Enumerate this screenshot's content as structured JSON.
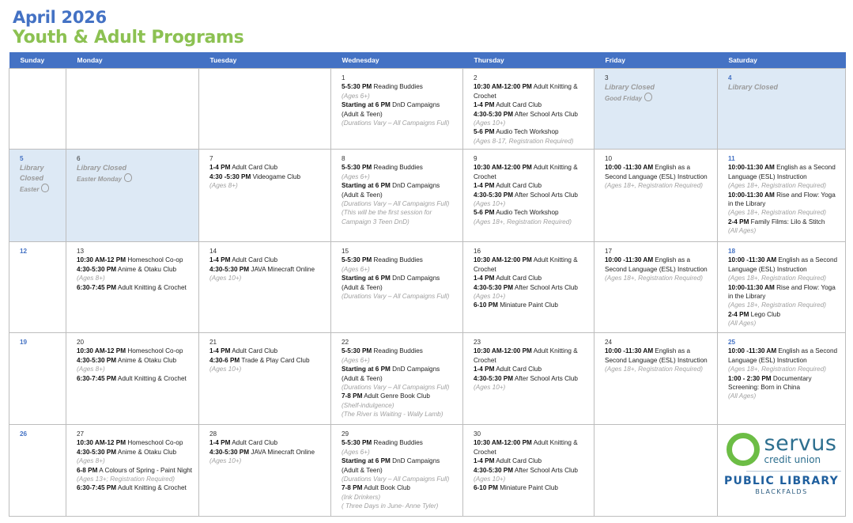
{
  "header": {
    "month": "April 2026",
    "title": "Youth & Adult Programs"
  },
  "colors": {
    "header_bg": "#4472c4",
    "title_blue": "#4472c4",
    "title_green": "#8cc152",
    "closed_bg": "#dde9f5"
  },
  "weekdays": [
    "Sunday",
    "Monday",
    "Tuesday",
    "Wednesday",
    "Thursday",
    "Friday",
    "Saturday"
  ],
  "weeks": [
    [
      {},
      {},
      {},
      {
        "date": "1",
        "events": [
          {
            "time": "5-5:30 PM",
            "title": "Reading Buddies",
            "notes": [
              "(Ages 6+)"
            ]
          },
          {
            "time": "Starting at 6 PM",
            "title": "DnD Campaigns (Adult & Teen)",
            "notes": [
              "(Durations Vary – All Campaigns Full)"
            ]
          }
        ]
      },
      {
        "date": "2",
        "events": [
          {
            "time": "10:30 AM-12:00 PM",
            "title": "Adult Knitting & Crochet",
            "notes": []
          },
          {
            "time": "1-4 PM",
            "title": "Adult Card Club",
            "notes": []
          },
          {
            "time": "4:30-5:30 PM",
            "title": "After School Arts Club",
            "notes": [
              "(Ages 10+)"
            ]
          },
          {
            "time": "5-6 PM",
            "title": "Audio Tech Workshop",
            "notes": [
              "(Ages 8-17, Registration Required)"
            ]
          }
        ]
      },
      {
        "date": "3",
        "closed": "Library Closed",
        "holiday": "Good Friday",
        "icon": "easter-egg-icon"
      },
      {
        "date": "4",
        "closed": "Library Closed"
      }
    ],
    [
      {
        "date": "5",
        "closed": "Library Closed",
        "holiday": "Easter",
        "icon": "easter-egg-icon"
      },
      {
        "date": "6",
        "closed": "Library Closed",
        "holiday": "Easter Monday",
        "icon": "easter-bunny-icon"
      },
      {
        "date": "7",
        "events": [
          {
            "time": "1-4 PM",
            "title": "Adult Card Club",
            "notes": []
          },
          {
            "time": "4:30 -5:30 PM",
            "title": "Videogame Club",
            "notes": [
              "(Ages 8+)"
            ]
          }
        ]
      },
      {
        "date": "8",
        "events": [
          {
            "time": "5-5:30 PM",
            "title": "Reading Buddies",
            "notes": [
              "(Ages 6+)"
            ]
          },
          {
            "time": "Starting at 6 PM",
            "title": "DnD Campaigns (Adult & Teen)",
            "notes": [
              "(Durations Vary – All Campaigns Full)",
              "(This will be the first session for Campaign 3 Teen DnD)"
            ]
          }
        ]
      },
      {
        "date": "9",
        "events": [
          {
            "time": "10:30 AM-12:00 PM",
            "title": "Adult Knitting & Crochet",
            "notes": []
          },
          {
            "time": "1-4 PM",
            "title": "Adult Card Club",
            "notes": []
          },
          {
            "time": "4:30-5:30 PM",
            "title": "After School Arts Club",
            "notes": [
              "(Ages 10+)"
            ]
          },
          {
            "time": "5-6 PM",
            "title": "Audio Tech Workshop",
            "notes": [
              "(Ages 18+, Registration Required)"
            ]
          }
        ]
      },
      {
        "date": "10",
        "events": [
          {
            "time": "10:00 -11:30 AM",
            "title": "English as a Second Language (ESL) Instruction",
            "notes": [
              "(Ages 18+, Registration Required)"
            ]
          }
        ]
      },
      {
        "date": "11",
        "events": [
          {
            "time": "10:00-11:30 AM",
            "title": "English as a Second Language (ESL) Instruction",
            "notes": [
              "(Ages 18+, Registration Required)"
            ]
          },
          {
            "time": "10:00-11:30 AM",
            "title": " Rise and Flow: Yoga in the Library",
            "notes": [
              "(Ages 18+, Registration Required)"
            ]
          },
          {
            "time": "2-4 PM",
            "title": "Family Films: Lilo & Stitch",
            "notes": [
              "(All Ages)"
            ]
          }
        ]
      }
    ],
    [
      {
        "date": "12",
        "events": []
      },
      {
        "date": "13",
        "events": [
          {
            "time": "10:30 AM-12 PM",
            "title": "Homeschool Co-op",
            "notes": []
          },
          {
            "time": "4:30-5:30 PM",
            "title": "Anime & Otaku Club",
            "notes": [
              "(Ages 8+)"
            ]
          },
          {
            "time": "6:30-7:45 PM",
            "title": "Adult Knitting & Crochet",
            "notes": []
          }
        ]
      },
      {
        "date": "14",
        "events": [
          {
            "time": "1-4 PM",
            "title": "Adult Card Club",
            "notes": []
          },
          {
            "time": "4:30-5:30 PM",
            "title": "JAVA Minecraft Online",
            "notes": [
              "(Ages 10+)"
            ]
          }
        ]
      },
      {
        "date": "15",
        "events": [
          {
            "time": "5-5:30 PM",
            "title": "Reading Buddies",
            "notes": [
              "(Ages 6+)"
            ]
          },
          {
            "time": "Starting at 6 PM",
            "title": "DnD Campaigns (Adult & Teen)",
            "notes": [
              "(Durations Vary – All Campaigns Full)"
            ]
          }
        ]
      },
      {
        "date": "16",
        "events": [
          {
            "time": "10:30 AM-12:00 PM",
            "title": "Adult Knitting & Crochet",
            "notes": []
          },
          {
            "time": "1-4 PM",
            "title": "Adult Card Club",
            "notes": []
          },
          {
            "time": "4:30-5:30 PM",
            "title": "After School Arts Club",
            "notes": [
              "(Ages 10+)"
            ]
          },
          {
            "time": "6-10 PM",
            "title": "Miniature Paint Club",
            "notes": []
          }
        ]
      },
      {
        "date": "17",
        "events": [
          {
            "time": "10:00 -11:30 AM",
            "title": "English as a Second Language (ESL) Instruction",
            "notes": [
              "(Ages 18+, Registration Required)"
            ]
          }
        ]
      },
      {
        "date": "18",
        "events": [
          {
            "time": "10:00 -11:30 AM",
            "title": "English as a Second Language (ESL) Instruction",
            "notes": [
              "(Ages 18+, Registration Required)"
            ]
          },
          {
            "time": "10:00-11:30 AM",
            "title": "Rise and Flow: Yoga in the Library",
            "notes": [
              "(Ages 18+, Registration Required)"
            ]
          },
          {
            "time": "2-4 PM",
            "title": "Lego Club",
            "notes": [
              "(All Ages)"
            ]
          }
        ]
      }
    ],
    [
      {
        "date": "19",
        "events": []
      },
      {
        "date": "20",
        "events": [
          {
            "time": "10:30 AM-12 PM",
            "title": "Homeschool Co-op",
            "notes": []
          },
          {
            "time": "4:30-5:30 PM",
            "title": "Anime & Otaku Club",
            "notes": [
              "(Ages 8+)"
            ]
          },
          {
            "time": "6:30-7:45 PM",
            "title": "Adult Knitting & Crochet",
            "notes": []
          }
        ]
      },
      {
        "date": "21",
        "events": [
          {
            "time": "1-4 PM",
            "title": "Adult Card Club",
            "notes": []
          },
          {
            "time": "4:30-6 PM",
            "title": "Trade & Play Card Club",
            "notes": [
              "(Ages 10+)"
            ]
          }
        ]
      },
      {
        "date": "22",
        "events": [
          {
            "time": "5-5:30 PM",
            "title": "Reading Buddies",
            "notes": [
              "(Ages 6+)"
            ]
          },
          {
            "time": "Starting at 6 PM",
            "title": "DnD Campaigns (Adult & Teen)",
            "notes": [
              "(Durations Vary – All Campaigns Full)"
            ]
          },
          {
            "time": "7-8 PM",
            "title": "Adult Genre Book Club",
            "notes": [
              "(Shelf-indulgence)",
              "(The River is Waiting - Wally Lamb)"
            ]
          }
        ]
      },
      {
        "date": "23",
        "events": [
          {
            "time": "10:30 AM-12:00 PM",
            "title": "Adult Knitting & Crochet",
            "notes": []
          },
          {
            "time": "1-4 PM",
            "title": "Adult Card Club",
            "notes": []
          },
          {
            "time": "4:30-5:30 PM",
            "title": "After School Arts Club",
            "notes": [
              "(Ages 10+)"
            ]
          }
        ]
      },
      {
        "date": "24",
        "events": [
          {
            "time": "10:00 -11:30 AM",
            "title": "English as a Second Language (ESL) Instruction",
            "notes": [
              "(Ages 18+, Registration Required)"
            ]
          }
        ]
      },
      {
        "date": "25",
        "events": [
          {
            "time": "10:00 -11:30 AM",
            "title": "English as a Second Language (ESL) Instruction",
            "notes": [
              "(Ages 18+, Registration Required)"
            ]
          },
          {
            "time": "1:00 - 2:30 PM",
            "title": "Documentary Screening: Born in China",
            "notes": [
              "(All Ages)"
            ]
          }
        ]
      }
    ],
    [
      {
        "date": "26",
        "events": []
      },
      {
        "date": "27",
        "events": [
          {
            "time": "10:30 AM-12 PM",
            "title": "Homeschool Co-op",
            "notes": []
          },
          {
            "time": "4:30-5:30 PM",
            "title": "Anime & Otaku Club",
            "notes": [
              "(Ages 8+)"
            ]
          },
          {
            "time": "6-8 PM",
            "title": "A Colours of Spring - Paint Night",
            "notes": [
              "(Ages 13+; Registration Required)"
            ]
          },
          {
            "time": "6:30-7:45 PM",
            "title": "Adult Knitting & Crochet",
            "notes": []
          }
        ]
      },
      {
        "date": "28",
        "events": [
          {
            "time": "1-4 PM",
            "title": "Adult Card Club",
            "notes": []
          },
          {
            "time": "4:30-5:30 PM",
            "title": "JAVA Minecraft Online",
            "notes": [
              "(Ages 10+)"
            ]
          }
        ]
      },
      {
        "date": "29",
        "events": [
          {
            "time": "5-5:30 PM",
            "title": "Reading Buddies",
            "notes": [
              "(Ages 6+)"
            ]
          },
          {
            "time": "Starting at 6 PM",
            "title": "DnD Campaigns (Adult & Teen)",
            "notes": [
              "(Durations Vary – All Campaigns Full)"
            ]
          },
          {
            "time": "7-8 PM",
            "title": "Adult Book Club",
            "notes": [
              "(Ink Drinkers)",
              "( Three Days in June- Anne Tyler)"
            ]
          }
        ]
      },
      {
        "date": "30",
        "events": [
          {
            "time": "10:30 AM-12:00 PM",
            "title": "Adult Knitting & Crochet",
            "notes": []
          },
          {
            "time": "1-4 PM",
            "title": "Adult Card Club",
            "notes": []
          },
          {
            "time": "4:30-5:30 PM",
            "title": "After School Arts Club",
            "notes": [
              "(Ages 10+)"
            ]
          },
          {
            "time": "6-10 PM",
            "title": "Miniature Paint Club",
            "notes": []
          }
        ]
      },
      {},
      {
        "logo": true
      }
    ]
  ],
  "logo": {
    "brand": "servus",
    "sub": "credit union",
    "library": "PUBLIC LIBRARY",
    "town": "BLACKFALDS"
  }
}
